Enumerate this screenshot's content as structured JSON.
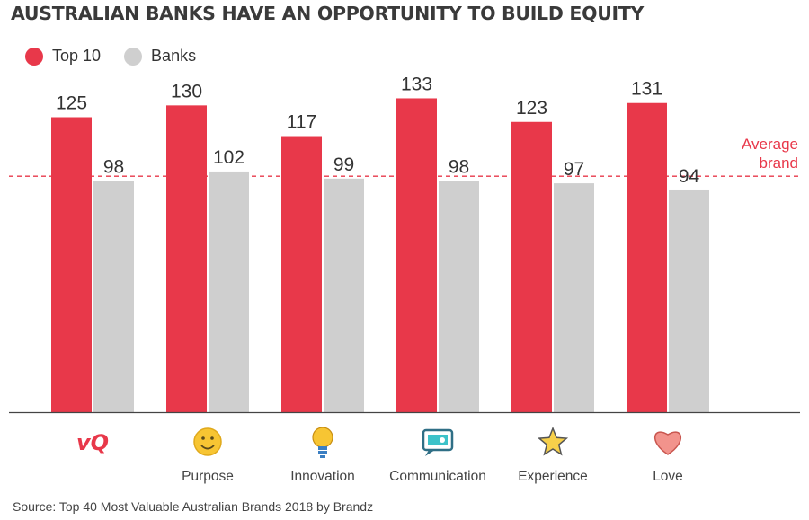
{
  "title": "AUSTRALIAN BANKS HAVE AN OPPORTUNITY TO BUILD EQUITY",
  "source": "Source: Top 40 Most Valuable Australian Brands 2018 by Brandz",
  "colors": {
    "top10": "#e8384a",
    "banks": "#cfcfcf",
    "reference": "#e8384a",
    "axis": "#444444",
    "text": "#333333"
  },
  "chart_data": {
    "type": "bar",
    "categories": [
      "vQ",
      "Purpose",
      "Innovation",
      "Communication",
      "Experience",
      "Love"
    ],
    "category_icons": [
      "vq-logo",
      "smiley-icon",
      "lightbulb-icon",
      "chat-bubble-icon",
      "star-icon",
      "heart-icon"
    ],
    "series": [
      {
        "name": "Top 10",
        "values": [
          125,
          130,
          117,
          133,
          123,
          131
        ]
      },
      {
        "name": "Banks",
        "values": [
          98,
          102,
          99,
          98,
          97,
          94
        ]
      }
    ],
    "reference_line": {
      "value": 100,
      "label_line1": "Average",
      "label_line2": "brand"
    },
    "ylim": [
      0,
      140
    ],
    "legend_position": "top-left",
    "grid": false
  }
}
